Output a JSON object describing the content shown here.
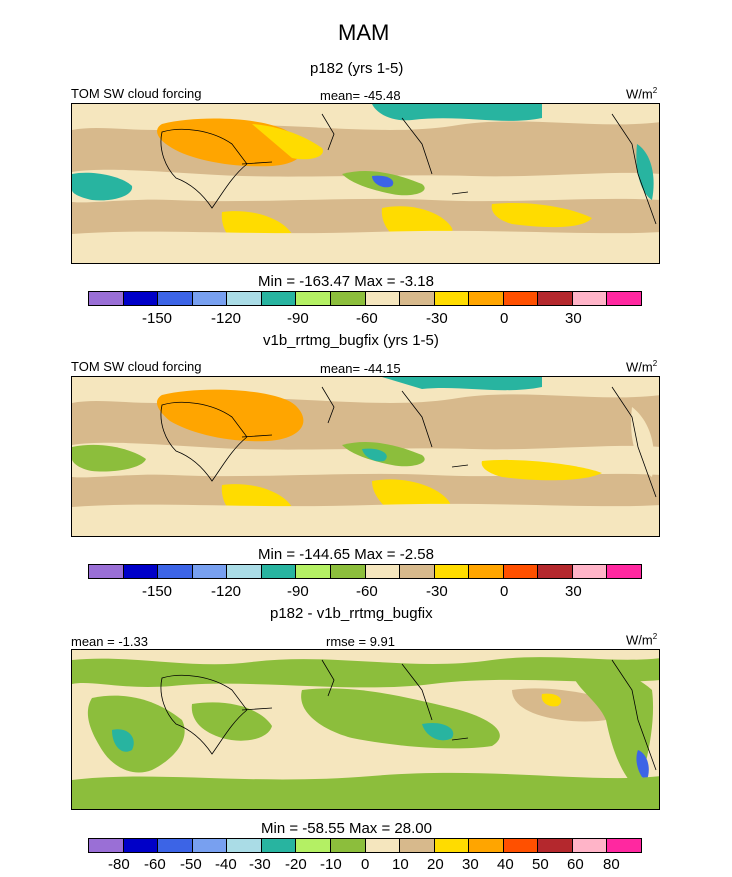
{
  "figure": {
    "title": "MAM",
    "panels": [
      {
        "subtitle": "p182 (yrs 1-5)",
        "left_label": "TOM SW cloud forcing",
        "center_label": "mean= -45.48",
        "units": "W/m",
        "units_sup": "2",
        "minmax": "Min = -163.47 Max =  -3.18"
      },
      {
        "subtitle": "v1b_rrtmg_bugfix (yrs 1-5)",
        "left_label": "TOM SW cloud forcing",
        "center_label": "mean= -44.15",
        "units": "W/m",
        "units_sup": "2",
        "minmax": "Min = -144.65 Max =  -2.58"
      },
      {
        "subtitle": "p182 - v1b_rrtmg_bugfix",
        "left_label": "mean =  -1.33",
        "center_label": "rmse =   9.91",
        "units": "W/m",
        "units_sup": "2",
        "minmax": "Min = -58.55 Max =  28.00"
      }
    ]
  },
  "chart_data": [
    {
      "type": "heatmap",
      "title": "p182 (yrs 1-5)",
      "variable": "TOM SW cloud forcing",
      "mean": -45.48,
      "min": -163.47,
      "max": -3.18,
      "units": "W/m2",
      "colorbar_ticks": [
        "-150",
        "-120",
        "-90",
        "-60",
        "-30",
        "0",
        "30"
      ],
      "colors": [
        "#9a6fd6",
        "#0000c8",
        "#3c64e6",
        "#78a0f0",
        "#aadce6",
        "#28b4a0",
        "#b4f064",
        "#8cbe3c",
        "#f5e6be",
        "#d7b98c",
        "#ffdc00",
        "#ffa500",
        "#ff5000",
        "#b4282d",
        "#ffb4c8",
        "#ff28a0"
      ]
    },
    {
      "type": "heatmap",
      "title": "v1b_rrtmg_bugfix (yrs 1-5)",
      "variable": "TOM SW cloud forcing",
      "mean": -44.15,
      "min": -144.65,
      "max": -2.58,
      "units": "W/m2",
      "colorbar_ticks": [
        "-150",
        "-120",
        "-90",
        "-60",
        "-30",
        "0",
        "30"
      ],
      "colors": [
        "#9a6fd6",
        "#0000c8",
        "#3c64e6",
        "#78a0f0",
        "#aadce6",
        "#28b4a0",
        "#b4f064",
        "#8cbe3c",
        "#f5e6be",
        "#d7b98c",
        "#ffdc00",
        "#ffa500",
        "#ff5000",
        "#b4282d",
        "#ffb4c8",
        "#ff28a0"
      ]
    },
    {
      "type": "heatmap",
      "title": "p182 - v1b_rrtmg_bugfix",
      "mean": -1.33,
      "rmse": 9.91,
      "min": -58.55,
      "max": 28.0,
      "units": "W/m2",
      "colorbar_ticks": [
        "-80",
        "-60",
        "-50",
        "-40",
        "-30",
        "-20",
        "-10",
        "0",
        "10",
        "20",
        "30",
        "40",
        "50",
        "60",
        "80"
      ],
      "colors": [
        "#9a6fd6",
        "#0000c8",
        "#3c64e6",
        "#78a0f0",
        "#aadce6",
        "#28b4a0",
        "#b4f064",
        "#8cbe3c",
        "#f5e6be",
        "#d7b98c",
        "#ffdc00",
        "#ffa500",
        "#ff5000",
        "#b4282d",
        "#ffb4c8",
        "#ff28a0"
      ]
    }
  ]
}
